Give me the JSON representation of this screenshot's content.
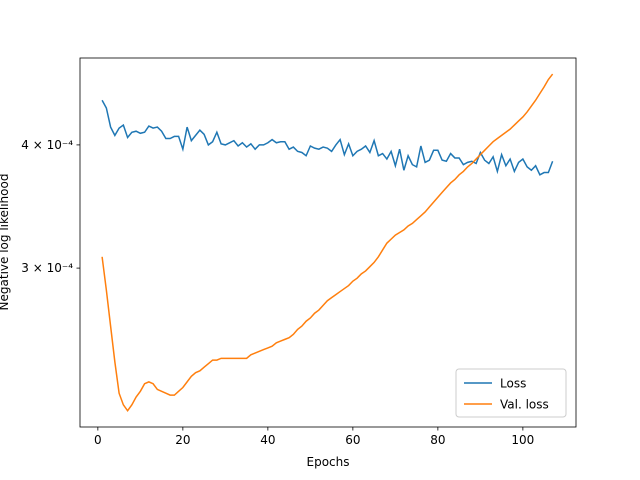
{
  "chart_data": {
    "type": "line",
    "xlabel": "Epochs",
    "ylabel": "Negative log likelihood",
    "yscale": "log",
    "xlim": [
      -4.2,
      112.5
    ],
    "ylim": [
      0.000207,
      0.00049
    ],
    "xticks": [
      0,
      20,
      40,
      60,
      80,
      100
    ],
    "yticks": [
      {
        "value": 0.0003,
        "label": "3 × 10⁻⁴"
      },
      {
        "value": 0.0004,
        "label": "4 × 10⁻⁴"
      }
    ],
    "legend": "lower right",
    "x": [
      1,
      2,
      3,
      4,
      5,
      6,
      7,
      8,
      9,
      10,
      11,
      12,
      13,
      14,
      15,
      16,
      17,
      18,
      19,
      20,
      21,
      22,
      23,
      24,
      25,
      26,
      27,
      28,
      29,
      30,
      31,
      32,
      33,
      34,
      35,
      36,
      37,
      38,
      39,
      40,
      41,
      42,
      43,
      44,
      45,
      46,
      47,
      48,
      49,
      50,
      51,
      52,
      53,
      54,
      55,
      56,
      57,
      58,
      59,
      60,
      61,
      62,
      63,
      64,
      65,
      66,
      67,
      68,
      69,
      70,
      71,
      72,
      73,
      74,
      75,
      76,
      77,
      78,
      79,
      80,
      81,
      82,
      83,
      84,
      85,
      86,
      87,
      88,
      89,
      90,
      91,
      92,
      93,
      94,
      95,
      96,
      97,
      98,
      99,
      100,
      101,
      102,
      103,
      104,
      105,
      106,
      107
    ],
    "series": [
      {
        "name": "Loss",
        "color": "#1f77b4",
        "values": [
          0.000444,
          0.000436,
          0.000417,
          0.000409,
          0.000416,
          0.000419,
          0.000407,
          0.000412,
          0.000413,
          0.000411,
          0.000412,
          0.000418,
          0.000416,
          0.000417,
          0.000413,
          0.000406,
          0.000406,
          0.000408,
          0.000408,
          0.000396,
          0.000417,
          0.000404,
          0.000409,
          0.000414,
          0.00041,
          0.0004,
          0.000403,
          0.000412,
          0.000401,
          0.0004,
          0.000402,
          0.000404,
          0.000399,
          0.000402,
          0.000398,
          0.000401,
          0.000396,
          0.0004,
          0.0004,
          0.000402,
          0.000405,
          0.000402,
          0.000403,
          0.000403,
          0.000396,
          0.000398,
          0.000394,
          0.000393,
          0.00039,
          0.000399,
          0.000397,
          0.000396,
          0.000398,
          0.000397,
          0.000394,
          0.0004,
          0.000405,
          0.000391,
          0.000401,
          0.00039,
          0.000394,
          0.000396,
          0.000399,
          0.000393,
          0.000404,
          0.00039,
          0.000392,
          0.000387,
          0.000394,
          0.000381,
          0.000396,
          0.000377,
          0.00039,
          0.000382,
          0.00038,
          0.000399,
          0.000384,
          0.000386,
          0.000395,
          0.000395,
          0.000386,
          0.000385,
          0.000392,
          0.000388,
          0.000388,
          0.000382,
          0.000384,
          0.000385,
          0.000383,
          0.000393,
          0.000386,
          0.000383,
          0.000389,
          0.000376,
          0.000391,
          0.000381,
          0.000387,
          0.000376,
          0.000384,
          0.000387,
          0.00038,
          0.000377,
          0.000381,
          0.000373,
          0.000375,
          0.000375,
          0.000385
        ]
      },
      {
        "name": "Val. loss",
        "color": "#ff7f0e",
        "values": [
          0.000308,
          0.000285,
          0.000262,
          0.000241,
          0.000224,
          0.000218,
          0.000215,
          0.000218,
          0.000222,
          0.000225,
          0.000229,
          0.00023,
          0.000229,
          0.000226,
          0.000225,
          0.000224,
          0.000223,
          0.000223,
          0.000225,
          0.000227,
          0.00023,
          0.000233,
          0.000235,
          0.000236,
          0.000238,
          0.00024,
          0.000242,
          0.000242,
          0.000243,
          0.000243,
          0.000243,
          0.000243,
          0.000243,
          0.000243,
          0.000243,
          0.000245,
          0.000246,
          0.000247,
          0.000248,
          0.000249,
          0.00025,
          0.000252,
          0.000253,
          0.000254,
          0.000255,
          0.000257,
          0.00026,
          0.000262,
          0.000265,
          0.000267,
          0.00027,
          0.000272,
          0.000275,
          0.000278,
          0.00028,
          0.000282,
          0.000284,
          0.000286,
          0.000288,
          0.000291,
          0.000293,
          0.000296,
          0.000298,
          0.000301,
          0.000304,
          0.000308,
          0.000313,
          0.000318,
          0.000321,
          0.000324,
          0.000326,
          0.000328,
          0.000331,
          0.000333,
          0.000336,
          0.000339,
          0.000342,
          0.000346,
          0.00035,
          0.000354,
          0.000358,
          0.000362,
          0.000366,
          0.000369,
          0.000373,
          0.000376,
          0.00038,
          0.000383,
          0.000387,
          0.000391,
          0.000395,
          0.000399,
          0.000403,
          0.000406,
          0.000409,
          0.000412,
          0.000415,
          0.000419,
          0.000423,
          0.000427,
          0.000432,
          0.000438,
          0.000444,
          0.000451,
          0.000458,
          0.000466,
          0.000472
        ]
      }
    ]
  }
}
